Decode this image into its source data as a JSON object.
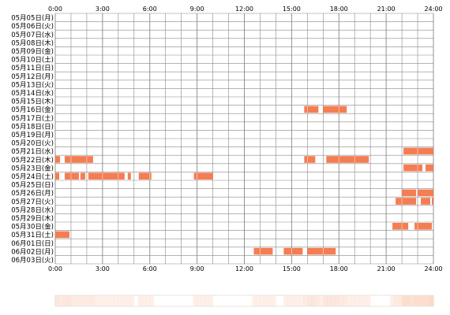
{
  "chart_data": {
    "type": "timeline",
    "x_ticks": [
      "0:00",
      "3:00",
      "6:00",
      "9:00",
      "12:00",
      "15:00",
      "18:00",
      "21:00",
      "24:00"
    ],
    "x_range_hours": [
      0,
      24
    ],
    "colors": {
      "bar": "#f57d52",
      "grid": "#888888",
      "background": "#ffffff",
      "heat_base": "#fbd0bc"
    },
    "rows": [
      {
        "label": "05月05日(月)",
        "segments": []
      },
      {
        "label": "05月06日(火)",
        "segments": []
      },
      {
        "label": "05月07日(水)",
        "segments": []
      },
      {
        "label": "05月08日(木)",
        "segments": []
      },
      {
        "label": "05月09日(金)",
        "segments": []
      },
      {
        "label": "05月10日(土)",
        "segments": []
      },
      {
        "label": "05月11日(日)",
        "segments": []
      },
      {
        "label": "05月12日(月)",
        "segments": []
      },
      {
        "label": "05月13日(火)",
        "segments": []
      },
      {
        "label": "05月14日(水)",
        "segments": []
      },
      {
        "label": "05月15日(木)",
        "segments": []
      },
      {
        "label": "05月16日(金)",
        "segments": [
          [
            15.8,
            16.7
          ],
          [
            17.0,
            18.5
          ]
        ]
      },
      {
        "label": "05月17日(土)",
        "segments": []
      },
      {
        "label": "05月18日(日)",
        "segments": []
      },
      {
        "label": "05月19日(月)",
        "segments": []
      },
      {
        "label": "05月20日(火)",
        "segments": []
      },
      {
        "label": "05月21日(水)",
        "segments": [
          [
            22.1,
            24.0
          ]
        ]
      },
      {
        "label": "05月22日(木)",
        "segments": [
          [
            0.0,
            0.3
          ],
          [
            0.6,
            2.4
          ],
          [
            15.8,
            16.5
          ],
          [
            17.2,
            19.9
          ]
        ]
      },
      {
        "label": "05月23日(金)",
        "segments": [
          [
            22.1,
            23.3
          ],
          [
            23.5,
            24.0
          ]
        ]
      },
      {
        "label": "05月24日(土)",
        "segments": [
          [
            0.0,
            0.25
          ],
          [
            0.6,
            1.5
          ],
          [
            1.6,
            1.9
          ],
          [
            2.1,
            4.4
          ],
          [
            4.6,
            4.8
          ],
          [
            5.3,
            6.1
          ],
          [
            8.8,
            10.0
          ]
        ]
      },
      {
        "label": "05月25日(日)",
        "segments": []
      },
      {
        "label": "05月26日(月)",
        "segments": [
          [
            22.0,
            22.9
          ],
          [
            23.0,
            24.0
          ]
        ]
      },
      {
        "label": "05月27日(火)",
        "segments": [
          [
            21.6,
            22.9
          ],
          [
            23.2,
            23.8
          ],
          [
            23.9,
            24.0
          ]
        ]
      },
      {
        "label": "05月28日(水)",
        "segments": []
      },
      {
        "label": "05月29日(木)",
        "segments": []
      },
      {
        "label": "05月30日(金)",
        "segments": [
          [
            21.4,
            22.4
          ],
          [
            22.8,
            23.9
          ]
        ]
      },
      {
        "label": "05月31日(土)",
        "segments": [
          [
            0.0,
            0.9
          ]
        ]
      },
      {
        "label": "06月01日(日)",
        "segments": []
      },
      {
        "label": "06月02日(月)",
        "segments": [
          [
            12.6,
            13.8
          ],
          [
            14.5,
            15.7
          ],
          [
            16.0,
            17.8
          ]
        ]
      },
      {
        "label": "06月03日(火)",
        "segments": []
      }
    ]
  }
}
